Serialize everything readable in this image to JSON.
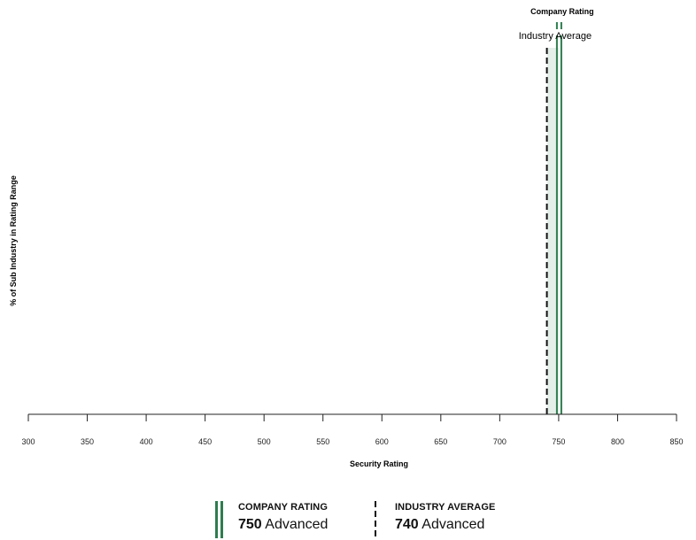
{
  "chart_data": {
    "type": "line",
    "xlabel": "Security Rating",
    "ylabel": "% of Sub Industry in Rating Range",
    "xlim": [
      300,
      850
    ],
    "xticks": [
      300,
      350,
      400,
      450,
      500,
      550,
      600,
      650,
      700,
      750,
      800,
      850
    ],
    "grid": false,
    "company": {
      "label": "Company Rating",
      "value": 750,
      "color": "#2e7d4f"
    },
    "industry": {
      "label": "Industry Average",
      "value": 740,
      "color": "#111111"
    },
    "band": {
      "range": [
        740,
        750
      ],
      "color": "#e5efe9"
    }
  },
  "legend": {
    "company": {
      "title": "COMPANY RATING",
      "value": "750",
      "text": "Advanced"
    },
    "industry": {
      "title": "INDUSTRY AVERAGE",
      "value": "740",
      "text": "Advanced"
    }
  }
}
